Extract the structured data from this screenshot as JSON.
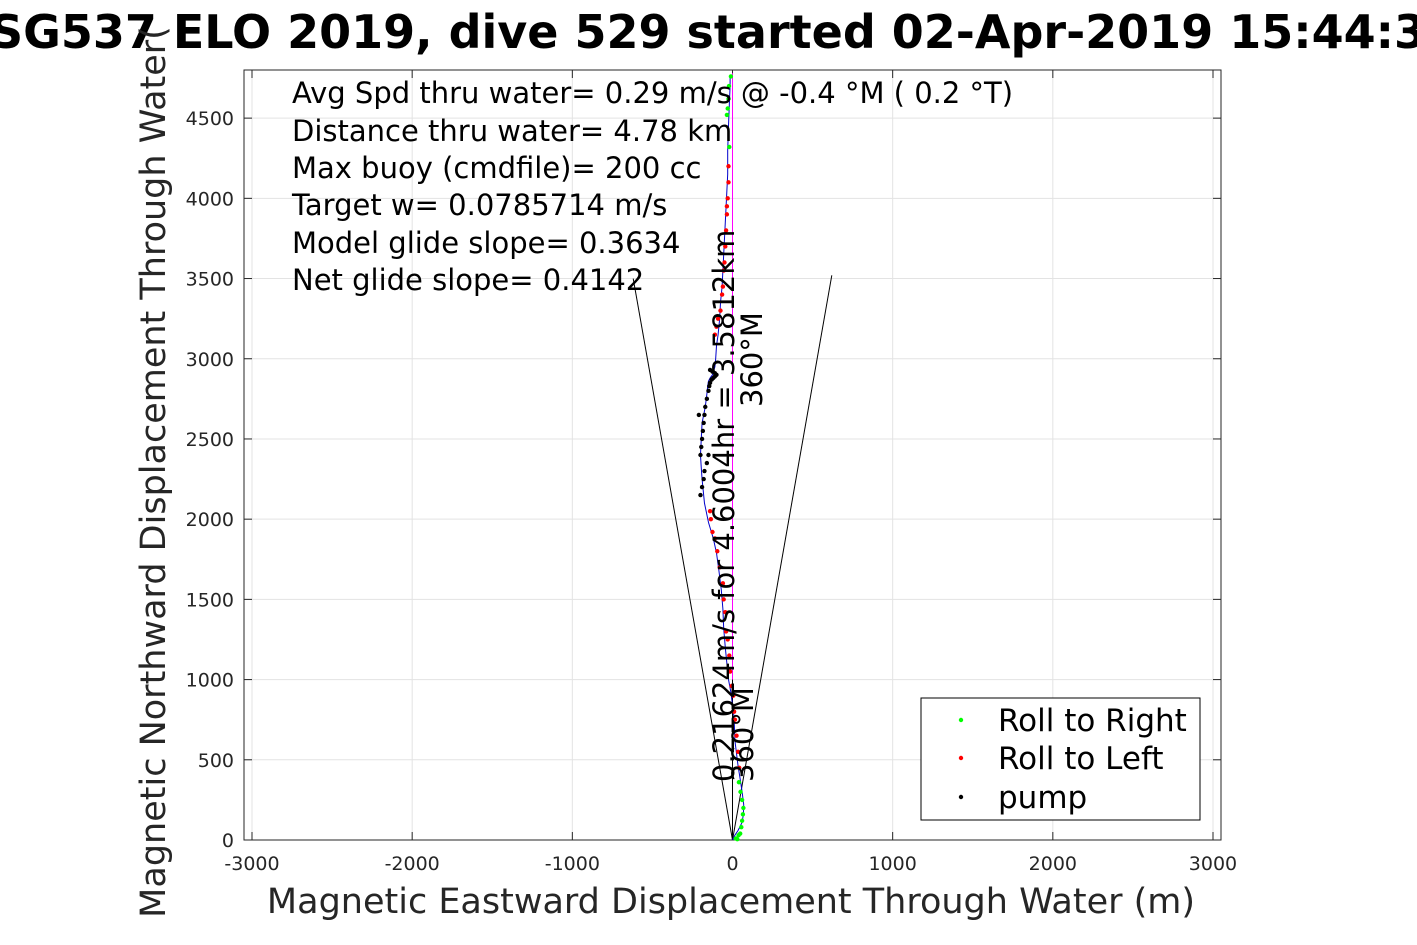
{
  "chart_data": {
    "type": "line",
    "title": "SG537 ELO 2019, dive 529 started 02-Apr-2019 15:44:3",
    "xlabel": "Magnetic Eastward Displacement Through Water (m)",
    "ylabel": "Magnetic Northward Displacement Through Water(",
    "xlim": [
      -3050,
      3050
    ],
    "ylim": [
      0,
      4800
    ],
    "xticks": [
      -3000,
      -2000,
      -1000,
      0,
      1000,
      2000,
      3000
    ],
    "yticks": [
      0,
      500,
      1000,
      1500,
      2000,
      2500,
      3000,
      3500,
      4000,
      4500
    ],
    "grid": true,
    "legend_position": "bottom-right",
    "annotations": [
      "Avg Spd thru water=  0.29 m/s @  -0.4 °M (  0.2 °T)",
      "Distance thru water=  4.78 km",
      "Max buoy (cmdfile)= 200 cc",
      "Target w= 0.0785714 m/s",
      "Model glide slope= 0.3634",
      "Net glide slope= 0.4142"
    ],
    "rotated_labels": {
      "track": "0.21624m/s for 4.6004hr = 3.5812km",
      "heading_long": "360°M",
      "heading_short": "360°M"
    },
    "series": [
      {
        "name": "track",
        "color": "#0000cc",
        "x": [
          0,
          15,
          35,
          60,
          68,
          70,
          60,
          48,
          35,
          25,
          15,
          12,
          10,
          0,
          -10,
          -25,
          -35,
          -45,
          -55,
          -60,
          -70,
          -85,
          -100,
          -120,
          -150,
          -175,
          -190,
          -195,
          -200,
          -195,
          -190,
          -170,
          -160,
          -155,
          -150,
          -140,
          -125,
          -110,
          -105,
          -100,
          -90,
          -80,
          -75,
          -65,
          -60,
          -55,
          -50,
          -45,
          -40,
          -35,
          -30,
          -30,
          -25,
          -20,
          -15,
          -15
        ],
        "y": [
          0,
          30,
          60,
          110,
          160,
          220,
          300,
          380,
          460,
          540,
          620,
          700,
          760,
          840,
          920,
          1000,
          1100,
          1200,
          1320,
          1440,
          1560,
          1680,
          1790,
          1880,
          1980,
          2100,
          2250,
          2320,
          2400,
          2500,
          2600,
          2700,
          2780,
          2830,
          2860,
          2880,
          2900,
          2950,
          3000,
          3080,
          3150,
          3250,
          3350,
          3450,
          3550,
          3650,
          3750,
          3850,
          3950,
          4050,
          4150,
          4300,
          4450,
          4580,
          4700,
          4760
        ]
      },
      {
        "name": "Roll to Right",
        "color": "#00ff00",
        "x": [
          20,
          38,
          48,
          55,
          60,
          65,
          68,
          60,
          50,
          40,
          -20,
          -35,
          -30,
          -25,
          -22,
          -10,
          30
        ],
        "y": [
          10,
          30,
          40,
          80,
          120,
          160,
          200,
          250,
          300,
          360,
          4320,
          4520,
          4560,
          4620,
          4700,
          4760,
          5
        ]
      },
      {
        "name": "Roll to Left",
        "color": "#ff0000",
        "x": [
          42,
          35,
          25,
          15,
          10,
          5,
          -5,
          -15,
          -20,
          -30,
          -40,
          -45,
          -55,
          -60,
          -80,
          -95,
          -110,
          -125,
          -135,
          -140,
          -110,
          -100,
          -90,
          -75,
          -65,
          -60,
          -55,
          -50,
          -45,
          -40,
          -35,
          -35,
          -30,
          -25,
          -25
        ],
        "y": [
          450,
          550,
          650,
          750,
          800,
          900,
          960,
          1050,
          1150,
          1250,
          1300,
          1420,
          1500,
          1600,
          1700,
          1800,
          1880,
          1920,
          2000,
          2050,
          3150,
          3200,
          3250,
          3300,
          3400,
          3450,
          3550,
          3600,
          3700,
          3800,
          3900,
          3950,
          4000,
          4100,
          4200
        ]
      },
      {
        "name": "pump",
        "color": "#000000",
        "x": [
          -200,
          -195,
          -190,
          -185,
          -180,
          -175,
          -170,
          -160,
          -150,
          -145,
          -140,
          -130,
          -120,
          -110,
          -100,
          -110,
          -125,
          -140,
          -150,
          -160,
          -175,
          -180,
          -190,
          -200,
          -210
        ],
        "y": [
          2400,
          2450,
          2500,
          2550,
          2600,
          2650,
          2700,
          2750,
          2800,
          2830,
          2850,
          2870,
          2880,
          2890,
          2900,
          2910,
          2920,
          2930,
          2400,
          2350,
          2300,
          2250,
          2200,
          2150,
          2650
        ]
      }
    ],
    "reference_lines": [
      {
        "name": "cone-left",
        "color": "#000000",
        "x": [
          0,
          -620
        ],
        "y": [
          0,
          3500
        ]
      },
      {
        "name": "cone-right",
        "color": "#000000",
        "x": [
          0,
          620
        ],
        "y": [
          0,
          3520
        ]
      },
      {
        "name": "heading-360",
        "color": "#ff00ff",
        "x": [
          0,
          0
        ],
        "y": [
          0,
          4780
        ]
      },
      {
        "name": "heading-short",
        "color": "#000000",
        "x": [
          0,
          0
        ],
        "y": [
          0,
          1000
        ]
      }
    ],
    "legend": [
      {
        "label": "Roll to Right",
        "color": "#00ff00"
      },
      {
        "label": "Roll to Left",
        "color": "#ff0000"
      },
      {
        "label": "pump",
        "color": "#000000"
      }
    ]
  }
}
